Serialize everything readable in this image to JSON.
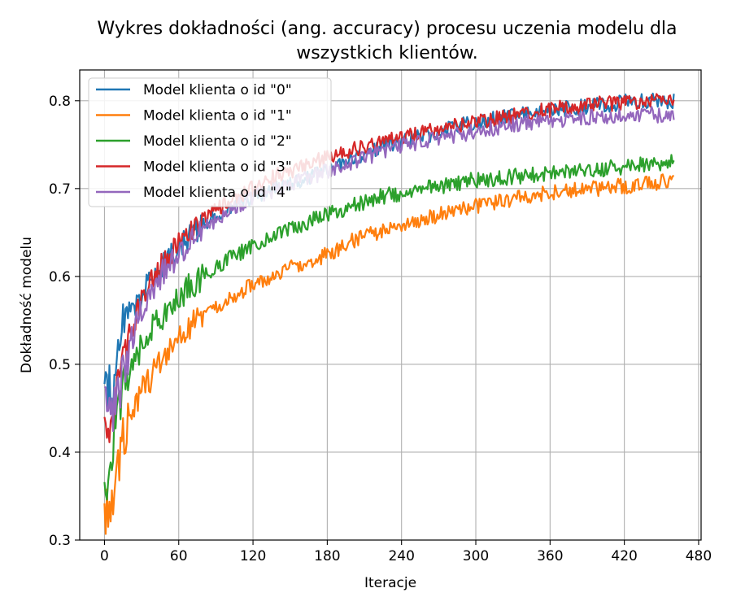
{
  "chart_data": {
    "type": "line",
    "title": [
      "Wykres dokładności (ang. accuracy) procesu uczenia modelu dla",
      "wszystkich klientów."
    ],
    "xlabel": "Iteracje",
    "ylabel": "Dokładność modelu",
    "xlim": [
      -20,
      482
    ],
    "ylim": [
      0.3,
      0.835
    ],
    "xticks": [
      0,
      60,
      120,
      180,
      240,
      300,
      360,
      420,
      480
    ],
    "yticks": [
      0.3,
      0.4,
      0.5,
      0.6,
      0.7,
      0.8
    ],
    "grid": true,
    "legend_position": "upper-left",
    "x_range": [
      0,
      460
    ],
    "series": [
      {
        "name": "Model klienta o id \"0\"",
        "color": "#1f77b4",
        "points": [
          [
            0,
            0.47
          ],
          [
            3,
            0.48
          ],
          [
            8,
            0.47
          ],
          [
            12,
            0.53
          ],
          [
            15,
            0.55
          ],
          [
            20,
            0.56
          ],
          [
            30,
            0.58
          ],
          [
            40,
            0.6
          ],
          [
            50,
            0.62
          ],
          [
            60,
            0.63
          ],
          [
            70,
            0.645
          ],
          [
            80,
            0.66
          ],
          [
            90,
            0.67
          ],
          [
            100,
            0.68
          ],
          [
            120,
            0.69
          ],
          [
            140,
            0.7
          ],
          [
            160,
            0.71
          ],
          [
            180,
            0.72
          ],
          [
            200,
            0.735
          ],
          [
            220,
            0.745
          ],
          [
            240,
            0.755
          ],
          [
            260,
            0.76
          ],
          [
            280,
            0.77
          ],
          [
            300,
            0.775
          ],
          [
            320,
            0.78
          ],
          [
            340,
            0.785
          ],
          [
            360,
            0.79
          ],
          [
            380,
            0.792
          ],
          [
            400,
            0.795
          ],
          [
            420,
            0.798
          ],
          [
            440,
            0.8
          ],
          [
            460,
            0.8
          ]
        ]
      },
      {
        "name": "Model klienta o id \"1\"",
        "color": "#ff7f0e",
        "points": [
          [
            0,
            0.33
          ],
          [
            5,
            0.34
          ],
          [
            10,
            0.38
          ],
          [
            15,
            0.42
          ],
          [
            20,
            0.44
          ],
          [
            30,
            0.47
          ],
          [
            40,
            0.49
          ],
          [
            50,
            0.51
          ],
          [
            60,
            0.53
          ],
          [
            70,
            0.545
          ],
          [
            80,
            0.555
          ],
          [
            90,
            0.565
          ],
          [
            100,
            0.575
          ],
          [
            120,
            0.59
          ],
          [
            140,
            0.605
          ],
          [
            160,
            0.615
          ],
          [
            180,
            0.625
          ],
          [
            200,
            0.64
          ],
          [
            220,
            0.65
          ],
          [
            240,
            0.66
          ],
          [
            260,
            0.665
          ],
          [
            280,
            0.675
          ],
          [
            300,
            0.68
          ],
          [
            320,
            0.685
          ],
          [
            340,
            0.69
          ],
          [
            360,
            0.695
          ],
          [
            380,
            0.698
          ],
          [
            400,
            0.7
          ],
          [
            420,
            0.703
          ],
          [
            440,
            0.706
          ],
          [
            460,
            0.71
          ]
        ]
      },
      {
        "name": "Model klienta o id \"2\"",
        "color": "#2ca02c",
        "points": [
          [
            0,
            0.35
          ],
          [
            5,
            0.4
          ],
          [
            10,
            0.44
          ],
          [
            15,
            0.47
          ],
          [
            20,
            0.49
          ],
          [
            30,
            0.52
          ],
          [
            40,
            0.545
          ],
          [
            50,
            0.56
          ],
          [
            60,
            0.575
          ],
          [
            70,
            0.59
          ],
          [
            80,
            0.6
          ],
          [
            90,
            0.61
          ],
          [
            100,
            0.62
          ],
          [
            120,
            0.635
          ],
          [
            140,
            0.65
          ],
          [
            160,
            0.66
          ],
          [
            180,
            0.67
          ],
          [
            200,
            0.68
          ],
          [
            220,
            0.69
          ],
          [
            240,
            0.695
          ],
          [
            260,
            0.7
          ],
          [
            280,
            0.705
          ],
          [
            300,
            0.71
          ],
          [
            320,
            0.712
          ],
          [
            340,
            0.715
          ],
          [
            360,
            0.718
          ],
          [
            380,
            0.72
          ],
          [
            400,
            0.722
          ],
          [
            420,
            0.725
          ],
          [
            440,
            0.728
          ],
          [
            460,
            0.73
          ]
        ]
      },
      {
        "name": "Model klienta o id \"3\"",
        "color": "#d62728",
        "points": [
          [
            0,
            0.42
          ],
          [
            5,
            0.44
          ],
          [
            10,
            0.47
          ],
          [
            15,
            0.5
          ],
          [
            20,
            0.53
          ],
          [
            30,
            0.57
          ],
          [
            40,
            0.6
          ],
          [
            50,
            0.62
          ],
          [
            60,
            0.64
          ],
          [
            70,
            0.655
          ],
          [
            80,
            0.665
          ],
          [
            90,
            0.675
          ],
          [
            100,
            0.685
          ],
          [
            120,
            0.7
          ],
          [
            140,
            0.715
          ],
          [
            160,
            0.725
          ],
          [
            180,
            0.735
          ],
          [
            200,
            0.745
          ],
          [
            220,
            0.752
          ],
          [
            240,
            0.758
          ],
          [
            260,
            0.765
          ],
          [
            280,
            0.77
          ],
          [
            300,
            0.775
          ],
          [
            320,
            0.78
          ],
          [
            340,
            0.785
          ],
          [
            360,
            0.79
          ],
          [
            380,
            0.793
          ],
          [
            400,
            0.796
          ],
          [
            420,
            0.798
          ],
          [
            440,
            0.8
          ],
          [
            460,
            0.802
          ]
        ]
      },
      {
        "name": "Model klienta o id \"4\"",
        "color": "#9467bd",
        "points": [
          [
            0,
            0.45
          ],
          [
            5,
            0.44
          ],
          [
            10,
            0.46
          ],
          [
            15,
            0.49
          ],
          [
            20,
            0.52
          ],
          [
            30,
            0.56
          ],
          [
            40,
            0.59
          ],
          [
            50,
            0.61
          ],
          [
            60,
            0.625
          ],
          [
            70,
            0.64
          ],
          [
            80,
            0.655
          ],
          [
            90,
            0.665
          ],
          [
            100,
            0.675
          ],
          [
            120,
            0.69
          ],
          [
            140,
            0.7
          ],
          [
            160,
            0.71
          ],
          [
            180,
            0.72
          ],
          [
            200,
            0.73
          ],
          [
            220,
            0.74
          ],
          [
            240,
            0.748
          ],
          [
            260,
            0.755
          ],
          [
            280,
            0.76
          ],
          [
            300,
            0.765
          ],
          [
            320,
            0.77
          ],
          [
            340,
            0.775
          ],
          [
            360,
            0.778
          ],
          [
            380,
            0.78
          ],
          [
            400,
            0.782
          ],
          [
            420,
            0.784
          ],
          [
            440,
            0.785
          ],
          [
            460,
            0.782
          ]
        ]
      }
    ]
  }
}
